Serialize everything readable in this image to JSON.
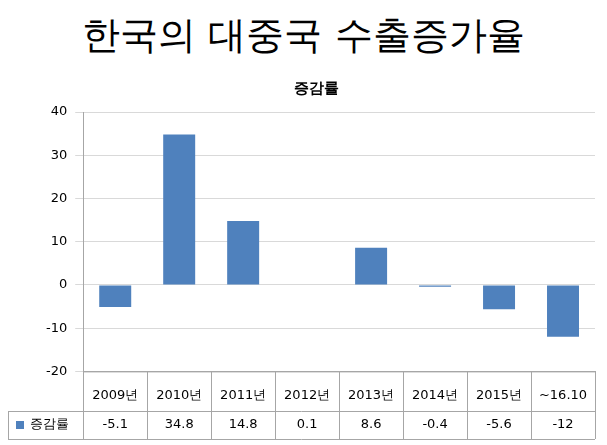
{
  "chart_data": {
    "type": "bar",
    "title": "한국의 대중국 수출증가율",
    "subtitle": "증감률",
    "categories": [
      "2009년",
      "2010년",
      "2011년",
      "2012년",
      "2013년",
      "2014년",
      "2015년",
      "~16.10"
    ],
    "series": [
      {
        "name": "증감률",
        "color": "#4f81bd",
        "values": [
          -5.1,
          34.8,
          14.8,
          0.1,
          8.6,
          -0.4,
          -5.6,
          -12
        ]
      }
    ],
    "ylim": [
      -20,
      40
    ],
    "yticks": [
      -20,
      -10,
      0,
      10,
      20,
      30,
      40
    ],
    "grid": true,
    "data_labels": true,
    "legend": "bottom"
  }
}
